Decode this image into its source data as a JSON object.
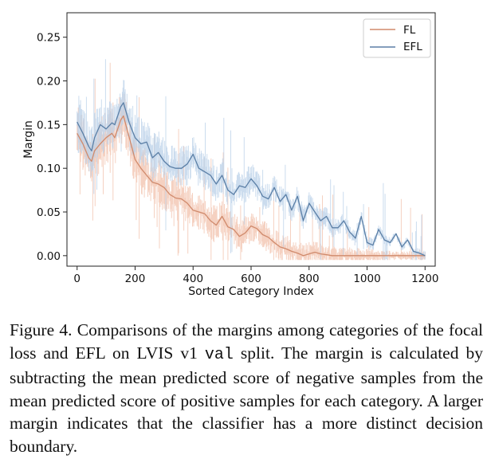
{
  "chart_data": {
    "type": "line",
    "title": "",
    "xlabel": "Sorted Category Index",
    "ylabel": "Margin",
    "xlim": [
      -35,
      1235
    ],
    "ylim": [
      -0.012,
      0.278
    ],
    "xticks": [
      0,
      200,
      400,
      600,
      800,
      1000,
      1200
    ],
    "xtick_labels": [
      "0",
      "200",
      "400",
      "600",
      "800",
      "1000",
      "1200"
    ],
    "yticks": [
      0.0,
      0.05,
      0.1,
      0.15,
      0.2,
      0.25
    ],
    "ytick_labels": [
      "0.00",
      "0.05",
      "0.10",
      "0.15",
      "0.20",
      "0.25"
    ],
    "grid": false,
    "legend_position": "top-right",
    "series": [
      {
        "name": "FL",
        "color": "#d08a6c",
        "x": [
          0,
          20,
          40,
          50,
          60,
          80,
          100,
          120,
          130,
          150,
          160,
          180,
          200,
          220,
          240,
          260,
          280,
          300,
          320,
          340,
          360,
          380,
          400,
          420,
          440,
          460,
          480,
          500,
          520,
          540,
          560,
          580,
          600,
          620,
          640,
          660,
          680,
          700,
          720,
          740,
          760,
          780,
          800,
          820,
          840,
          860,
          880,
          900,
          1000,
          1100,
          1200
        ],
        "values": [
          0.14,
          0.128,
          0.112,
          0.108,
          0.12,
          0.128,
          0.135,
          0.14,
          0.135,
          0.155,
          0.16,
          0.135,
          0.11,
          0.1,
          0.092,
          0.084,
          0.082,
          0.078,
          0.07,
          0.066,
          0.065,
          0.06,
          0.052,
          0.05,
          0.048,
          0.04,
          0.035,
          0.045,
          0.033,
          0.03,
          0.022,
          0.026,
          0.034,
          0.031,
          0.024,
          0.021,
          0.015,
          0.01,
          0.008,
          0.005,
          0.003,
          0.0,
          0.002,
          0.004,
          0.002,
          0.001,
          0.0,
          0.0,
          0.0,
          0.0,
          0.0
        ]
      },
      {
        "name": "EFL",
        "color": "#5b7fa6",
        "x": [
          0,
          20,
          40,
          50,
          60,
          80,
          100,
          120,
          130,
          150,
          160,
          180,
          200,
          220,
          240,
          260,
          280,
          300,
          320,
          340,
          360,
          380,
          400,
          420,
          440,
          460,
          480,
          500,
          520,
          540,
          560,
          580,
          600,
          620,
          640,
          660,
          680,
          700,
          720,
          740,
          760,
          780,
          800,
          820,
          840,
          860,
          880,
          900,
          920,
          940,
          960,
          980,
          1000,
          1020,
          1040,
          1060,
          1080,
          1100,
          1120,
          1140,
          1160,
          1180,
          1200
        ],
        "values": [
          0.153,
          0.14,
          0.125,
          0.12,
          0.135,
          0.15,
          0.145,
          0.152,
          0.15,
          0.17,
          0.175,
          0.152,
          0.135,
          0.128,
          0.13,
          0.112,
          0.118,
          0.108,
          0.102,
          0.1,
          0.1,
          0.105,
          0.116,
          0.1,
          0.096,
          0.092,
          0.082,
          0.092,
          0.075,
          0.07,
          0.08,
          0.078,
          0.088,
          0.08,
          0.068,
          0.065,
          0.078,
          0.062,
          0.07,
          0.052,
          0.068,
          0.04,
          0.06,
          0.05,
          0.04,
          0.045,
          0.032,
          0.032,
          0.04,
          0.027,
          0.02,
          0.045,
          0.015,
          0.012,
          0.03,
          0.018,
          0.015,
          0.025,
          0.01,
          0.018,
          0.005,
          0.003,
          0.0
        ]
      }
    ]
  },
  "caption": {
    "lead": "Figure 4.  Comparisons of the margins among categories of the focal loss and EFL on LVIS v1 ",
    "mono": "val",
    "tail": " split. The margin is calculated by subtracting the mean predicted score of negative samples from the mean predicted score of positive samples for each category. A larger margin indicates that the classifier has a more distinct decision boundary."
  }
}
